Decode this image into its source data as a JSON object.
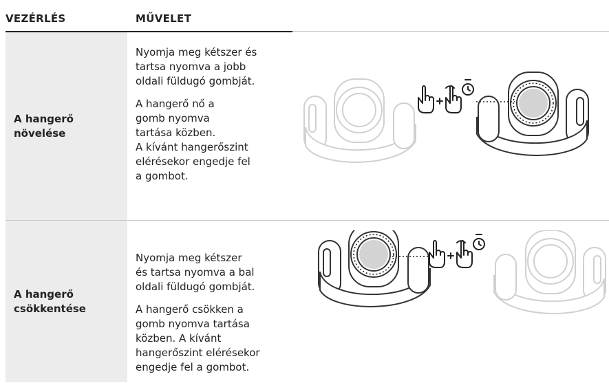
{
  "header": {
    "columns": [
      "VEZÉRLÉS",
      "MŰVELET"
    ]
  },
  "rows": [
    {
      "control": [
        "A hangerő",
        "növelése"
      ],
      "paragraphs": [
        [
          "Nyomja meg kétszer és",
          "tartsa nyomva a jobb",
          "oldali füldugó gombját."
        ],
        [
          "A hangerő nő a",
          "gomb nyomva",
          "tartása közben.",
          "A kívánt hangerőszint",
          "elérésekor engedje fel",
          "a gombot."
        ]
      ]
    },
    {
      "control": [
        "A hangerő",
        "csökkentése"
      ],
      "paragraphs": [
        [
          "Nyomja meg kétszer",
          "és tartsa nyomva a bal",
          "oldali füldugó gombját."
        ],
        [
          "A hangerő csökken a",
          "gomb nyomva tartása",
          "közben. A kívánt",
          "hangerőszint elérésekor",
          "engedje fel a gombot."
        ]
      ]
    }
  ]
}
